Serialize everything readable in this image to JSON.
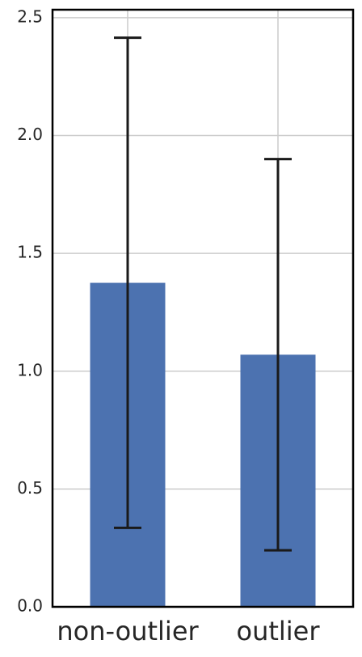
{
  "chart_data": {
    "type": "bar",
    "categories": [
      "non-outlier",
      "outlier"
    ],
    "values": [
      1.375,
      1.07
    ],
    "errors": [
      1.04,
      0.83
    ],
    "color": "#4c72b0",
    "error_color": "#1a1a1a",
    "ylim": [
      0,
      2.534
    ],
    "yticks": [
      {
        "value": 0,
        "label": "0.0"
      },
      0.5,
      {
        "value": 1,
        "label": "1.0"
      },
      1.5,
      {
        "value": 2,
        "label": "2.0"
      },
      2.5
    ],
    "grid": true
  }
}
